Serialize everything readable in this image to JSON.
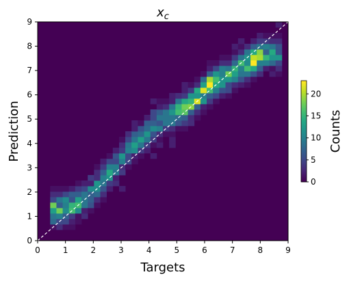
{
  "chart_data": {
    "type": "heatmap",
    "title_main": "x",
    "title_sub": "c",
    "xlabel": "Targets",
    "ylabel": "Prediction",
    "xlim": [
      0,
      9
    ],
    "ylim": [
      0,
      9
    ],
    "x_ticks": [
      "0",
      "1",
      "2",
      "3",
      "4",
      "5",
      "6",
      "7",
      "8",
      "9"
    ],
    "y_ticks": [
      "0",
      "1",
      "2",
      "3",
      "4",
      "5",
      "6",
      "7",
      "8",
      "9"
    ],
    "bins": 40,
    "reference_line": "y = x (dashed, white)",
    "colormap": "viridis",
    "colorbar": {
      "label": "Counts",
      "range": [
        0,
        23
      ],
      "ticks": [
        "0",
        "5",
        "10",
        "15",
        "20"
      ]
    },
    "background_color": "#440154",
    "ridge_profile": [
      {
        "target": 1.0,
        "prediction": 1.3,
        "count": 15
      },
      {
        "target": 1.8,
        "prediction": 1.8,
        "count": 9
      },
      {
        "target": 2.6,
        "prediction": 2.8,
        "count": 10
      },
      {
        "target": 3.5,
        "prediction": 4.0,
        "count": 9
      },
      {
        "target": 4.5,
        "prediction": 5.0,
        "count": 11
      },
      {
        "target": 5.5,
        "prediction": 5.6,
        "count": 15
      },
      {
        "target": 6.2,
        "prediction": 6.4,
        "count": 20
      },
      {
        "target": 7.0,
        "prediction": 6.9,
        "count": 12
      },
      {
        "target": 7.8,
        "prediction": 7.5,
        "count": 23
      },
      {
        "target": 8.3,
        "prediction": 7.7,
        "count": 10
      }
    ]
  }
}
